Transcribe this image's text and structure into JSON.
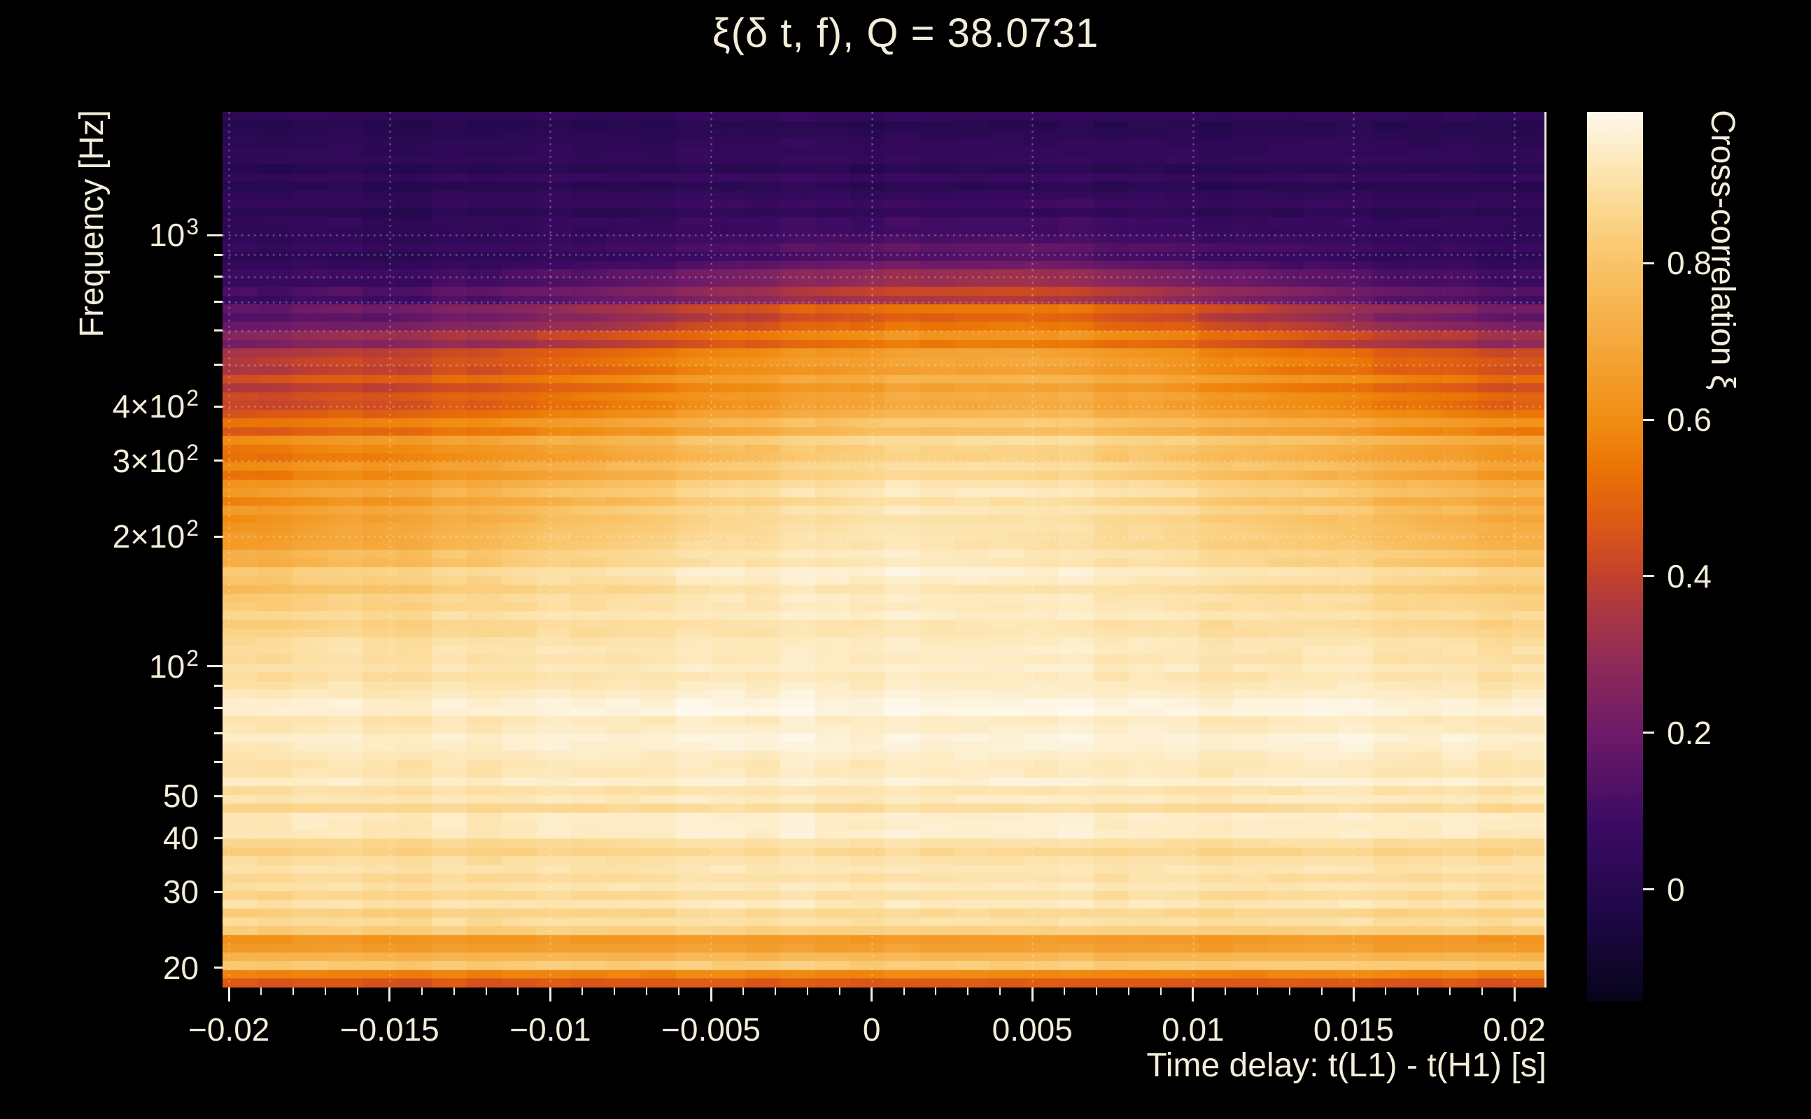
{
  "title": "ξ(δ t, f), Q = 38.0731",
  "colors": {
    "background": "#000000",
    "text": "#f3edda",
    "tick": "#f3edda",
    "gridline": "rgba(255,255,255,0.38)"
  },
  "chart_data": {
    "type": "heatmap",
    "title": "ξ(δ t, f), Q = 38.0731",
    "q_value": 38.0731,
    "xlabel": "Time delay: t(L1) - t(H1) [s]",
    "ylabel": "Frequency [Hz]",
    "colorbar_label": "Cross-correlation ξ",
    "x_range": [
      -0.0202,
      0.021
    ],
    "y_range_hz": [
      18.0,
      1930
    ],
    "x_scale": "linear",
    "y_scale": "log",
    "color_range": [
      -0.143,
      0.993
    ],
    "x_ticks": [
      {
        "value": -0.02,
        "label": "−0.02"
      },
      {
        "value": -0.015,
        "label": "−0.015"
      },
      {
        "value": -0.01,
        "label": "−0.01"
      },
      {
        "value": -0.005,
        "label": "−0.005"
      },
      {
        "value": 0,
        "label": "0"
      },
      {
        "value": 0.005,
        "label": "0.005"
      },
      {
        "value": 0.01,
        "label": "0.01"
      },
      {
        "value": 0.015,
        "label": "0.015"
      },
      {
        "value": 0.02,
        "label": "0.02"
      }
    ],
    "x_minor_step": 0.001,
    "y_ticks": [
      {
        "value": 1000,
        "mantissa": "10",
        "exponent": "3"
      },
      {
        "value": 400,
        "mantissa": "4×10",
        "exponent": "2"
      },
      {
        "value": 300,
        "mantissa": "3×10",
        "exponent": "2"
      },
      {
        "value": 200,
        "mantissa": "2×10",
        "exponent": "2"
      },
      {
        "value": 100,
        "mantissa": "10",
        "exponent": "2"
      },
      {
        "value": 50,
        "mantissa": "50",
        "exponent": ""
      },
      {
        "value": 40,
        "mantissa": "40",
        "exponent": ""
      },
      {
        "value": 30,
        "mantissa": "30",
        "exponent": ""
      },
      {
        "value": 20,
        "mantissa": "20",
        "exponent": ""
      }
    ],
    "colorbar_ticks": [
      {
        "value": 0.8,
        "label": "0.8"
      },
      {
        "value": 0.6,
        "label": "0.6"
      },
      {
        "value": 0.4,
        "label": "0.4"
      },
      {
        "value": 0.2,
        "label": "0.2"
      },
      {
        "value": 0,
        "label": "0"
      }
    ],
    "colormap": [
      [
        0.0,
        "#07041a"
      ],
      [
        0.1,
        "#1e0848"
      ],
      [
        0.2,
        "#3c0a63"
      ],
      [
        0.3,
        "#6d1a68"
      ],
      [
        0.38,
        "#8f2a59"
      ],
      [
        0.44,
        "#ab3740"
      ],
      [
        0.48,
        "#c4422c"
      ],
      [
        0.54,
        "#dd5a14"
      ],
      [
        0.6,
        "#ea7406"
      ],
      [
        0.65,
        "#f08c12"
      ],
      [
        0.72,
        "#f4a233"
      ],
      [
        0.78,
        "#f7b44e"
      ],
      [
        0.83,
        "#f9c468"
      ],
      [
        0.89,
        "#fbd78f"
      ],
      [
        0.94,
        "#fde7b6"
      ],
      [
        0.97,
        "#fdf0d2"
      ],
      [
        1.0,
        "#fef9ec"
      ]
    ],
    "grid": {
      "times": [
        -0.02,
        -0.015,
        -0.01,
        -0.005,
        0,
        0.005,
        0.01,
        0.015,
        0.02
      ],
      "frequencies_hz": [
        17.8,
        19,
        20.5,
        22.5,
        24.5,
        27,
        31,
        35,
        40,
        46,
        55,
        70,
        90,
        115,
        150,
        195,
        250,
        320,
        410,
        520,
        640,
        780,
        950,
        1250,
        1600,
        1930
      ],
      "xi": [
        [
          0.5,
          0.5,
          0.51,
          0.51,
          0.51,
          0.51,
          0.51,
          0.5,
          0.5
        ],
        [
          0.54,
          0.54,
          0.55,
          0.55,
          0.56,
          0.56,
          0.55,
          0.55,
          0.54
        ],
        [
          0.86,
          0.87,
          0.88,
          0.88,
          0.89,
          0.89,
          0.88,
          0.88,
          0.87
        ],
        [
          0.6,
          0.61,
          0.62,
          0.62,
          0.63,
          0.63,
          0.62,
          0.62,
          0.61
        ],
        [
          0.8,
          0.81,
          0.82,
          0.82,
          0.83,
          0.83,
          0.82,
          0.82,
          0.81
        ],
        [
          0.88,
          0.89,
          0.9,
          0.91,
          0.92,
          0.92,
          0.91,
          0.9,
          0.89
        ],
        [
          0.9,
          0.91,
          0.92,
          0.93,
          0.94,
          0.94,
          0.93,
          0.92,
          0.91
        ],
        [
          0.85,
          0.86,
          0.86,
          0.87,
          0.88,
          0.88,
          0.87,
          0.86,
          0.86
        ],
        [
          0.91,
          0.92,
          0.93,
          0.94,
          0.95,
          0.95,
          0.94,
          0.93,
          0.92
        ],
        [
          0.89,
          0.9,
          0.9,
          0.91,
          0.92,
          0.92,
          0.91,
          0.91,
          0.9
        ],
        [
          0.93,
          0.94,
          0.95,
          0.95,
          0.96,
          0.96,
          0.95,
          0.95,
          0.94
        ],
        [
          0.94,
          0.95,
          0.96,
          0.96,
          0.97,
          0.97,
          0.96,
          0.96,
          0.95
        ],
        [
          0.92,
          0.93,
          0.94,
          0.95,
          0.96,
          0.96,
          0.95,
          0.94,
          0.93
        ],
        [
          0.89,
          0.91,
          0.92,
          0.93,
          0.95,
          0.95,
          0.93,
          0.92,
          0.9
        ],
        [
          0.81,
          0.85,
          0.89,
          0.92,
          0.95,
          0.94,
          0.92,
          0.88,
          0.84
        ],
        [
          0.68,
          0.75,
          0.83,
          0.9,
          0.94,
          0.93,
          0.89,
          0.83,
          0.76
        ],
        [
          0.6,
          0.67,
          0.75,
          0.84,
          0.92,
          0.92,
          0.86,
          0.78,
          0.7
        ],
        [
          0.55,
          0.6,
          0.67,
          0.76,
          0.86,
          0.87,
          0.8,
          0.72,
          0.64
        ],
        [
          0.46,
          0.5,
          0.57,
          0.66,
          0.74,
          0.76,
          0.7,
          0.62,
          0.54
        ],
        [
          0.34,
          0.4,
          0.47,
          0.57,
          0.66,
          0.68,
          0.6,
          0.5,
          0.42
        ],
        [
          0.15,
          0.2,
          0.28,
          0.4,
          0.52,
          0.55,
          0.45,
          0.3,
          0.2
        ],
        [
          0.06,
          0.08,
          0.12,
          0.2,
          0.31,
          0.33,
          0.22,
          0.12,
          0.08
        ],
        [
          0.04,
          0.04,
          0.06,
          0.08,
          0.12,
          0.13,
          0.09,
          0.06,
          0.04
        ],
        [
          0.03,
          0.03,
          0.04,
          0.04,
          0.05,
          0.05,
          0.04,
          0.03,
          0.03
        ],
        [
          0.02,
          0.02,
          0.03,
          0.03,
          0.04,
          0.04,
          0.03,
          0.03,
          0.02
        ],
        [
          0.02,
          0.02,
          0.02,
          0.03,
          0.03,
          0.03,
          0.03,
          0.02,
          0.02
        ]
      ]
    },
    "texture": {
      "rows": 100,
      "cols": 38,
      "speckle": 0.02,
      "col_jitter": 0.014
    },
    "gridlines": {
      "x_values": [
        -0.02,
        -0.015,
        -0.01,
        -0.005,
        0,
        0.005,
        0.01,
        0.015,
        0.02
      ],
      "y_values_hz": [
        200,
        300,
        400,
        500,
        600,
        700,
        800,
        900,
        1000
      ]
    }
  }
}
